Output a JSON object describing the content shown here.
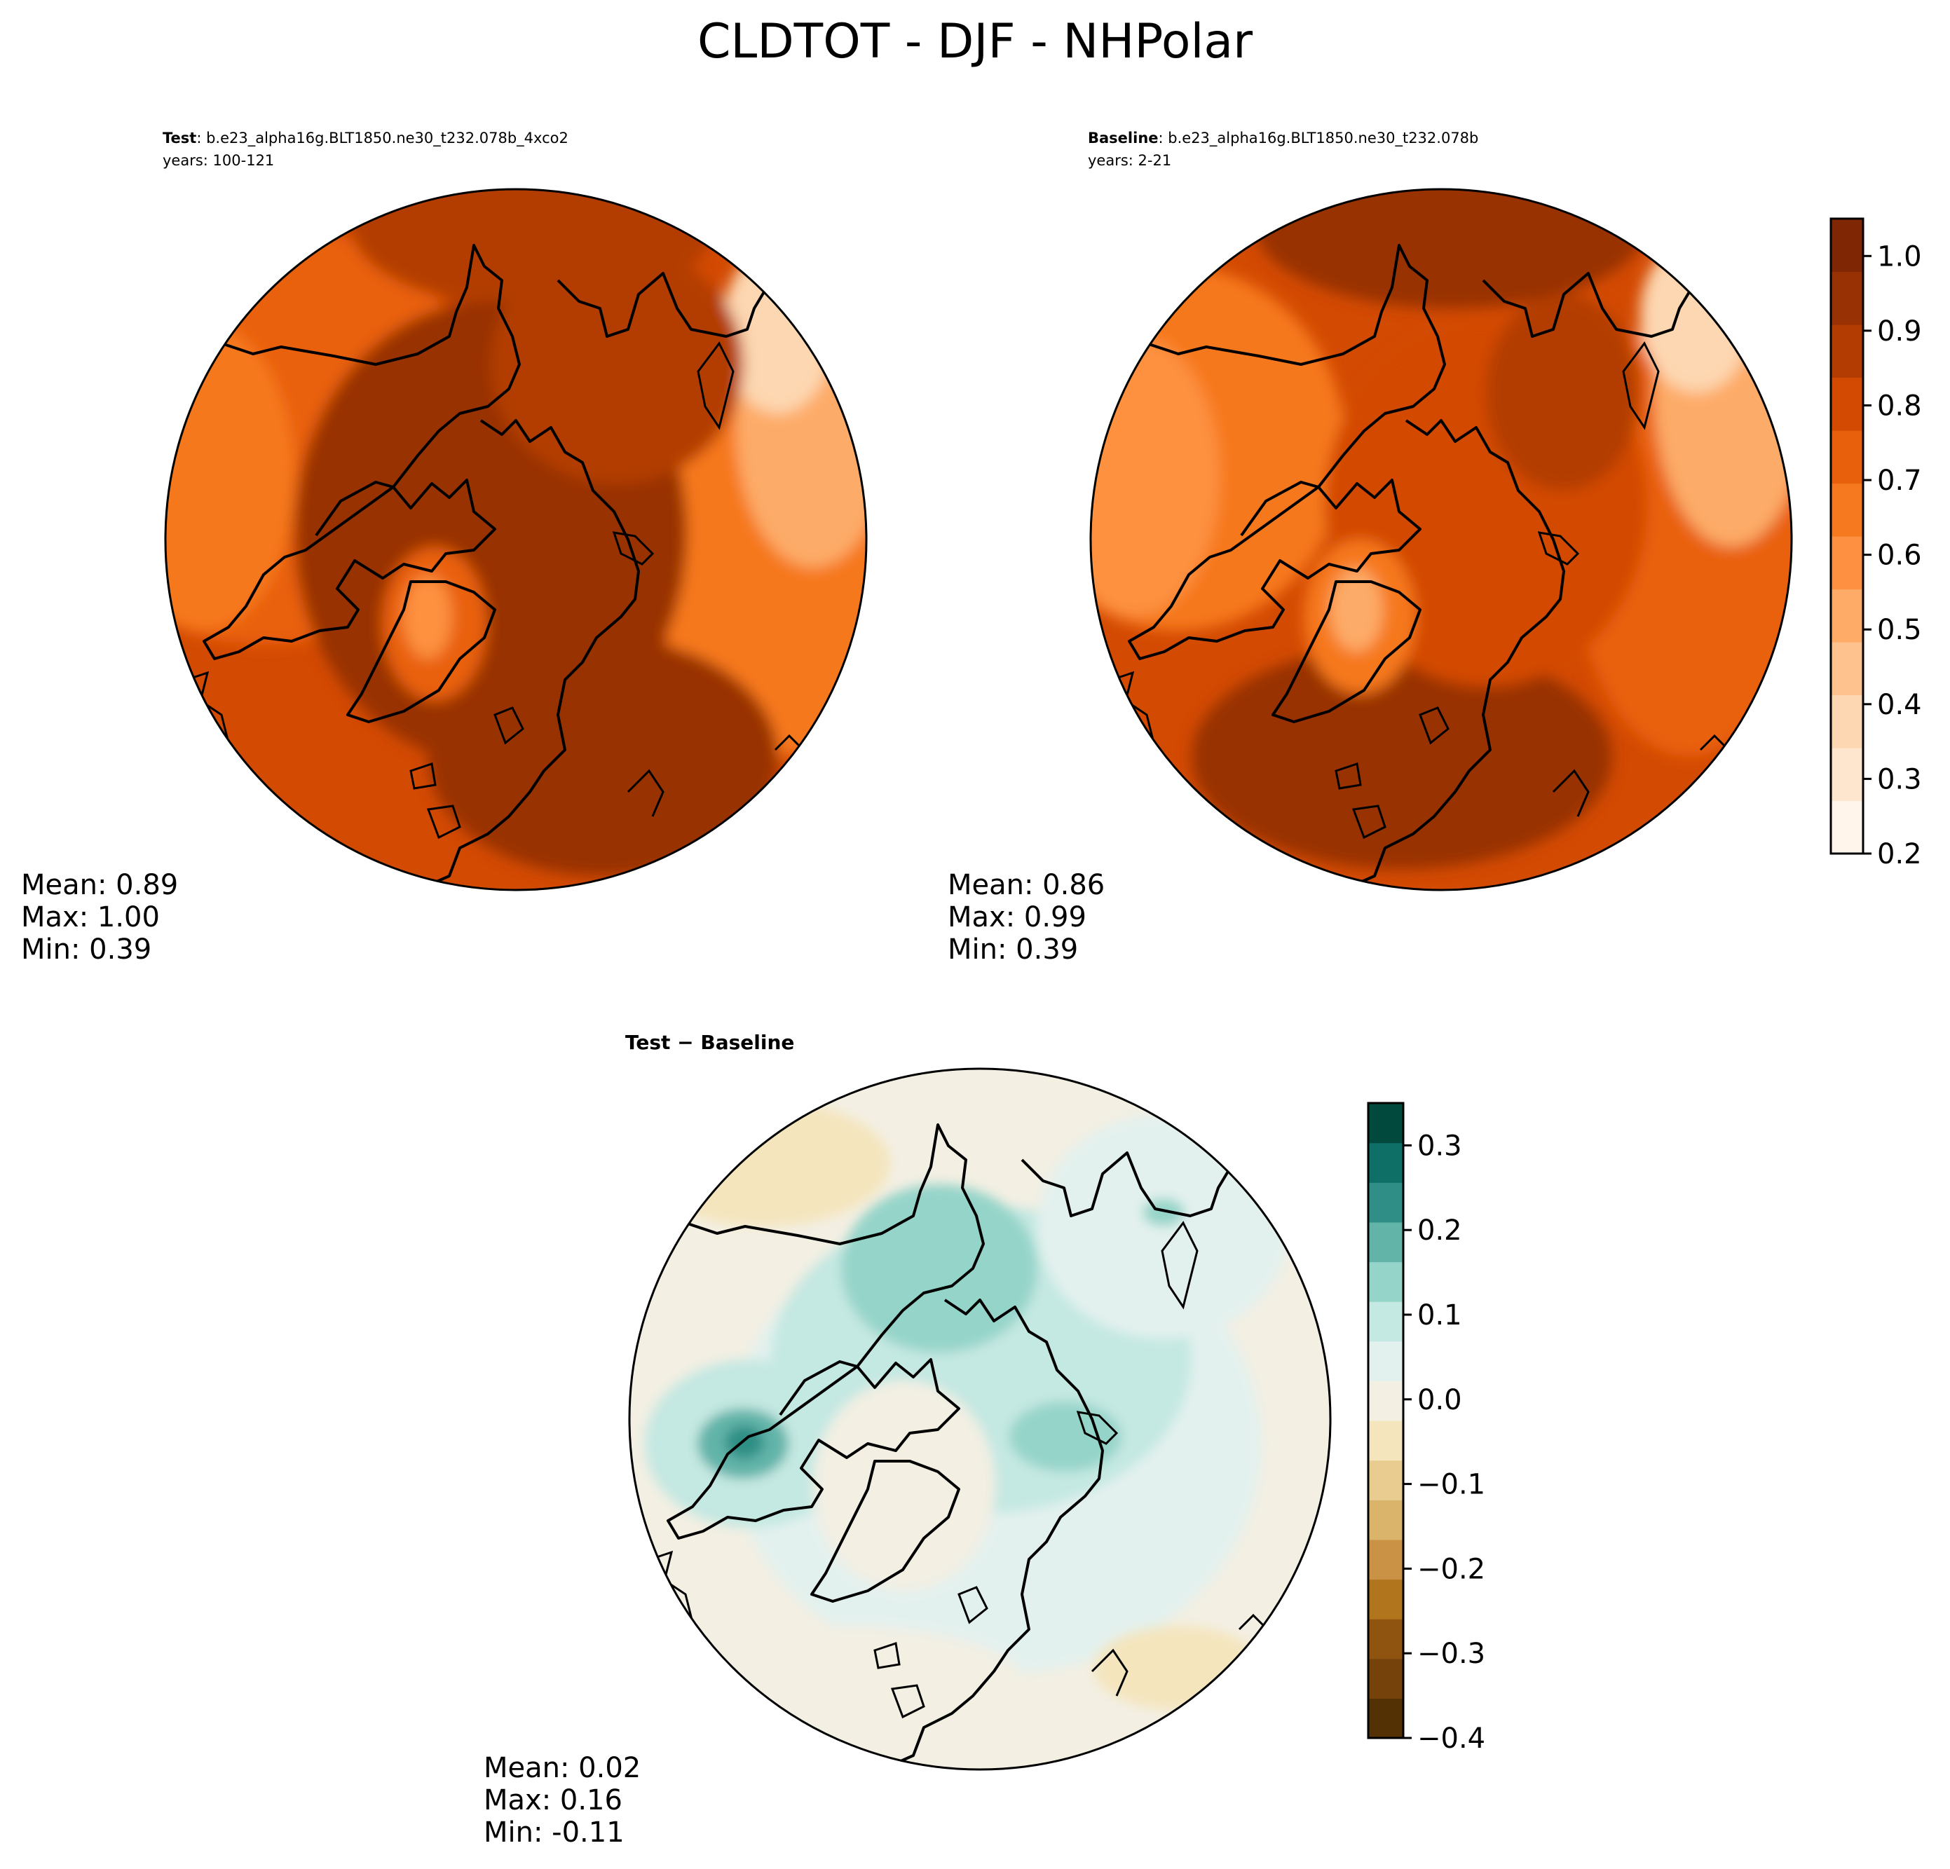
{
  "figure": {
    "title": "CLDTOT - DJF - NHPolar"
  },
  "palettes": {
    "oranges": [
      "#fff5eb",
      "#fee6ce",
      "#fdd7b1",
      "#fdc28e",
      "#fdab67",
      "#fd9141",
      "#f6781f",
      "#e9600c",
      "#d34a02",
      "#b33c02",
      "#983103",
      "#7f2704"
    ],
    "diverging": [
      "#543005",
      "#74420a",
      "#8f540f",
      "#b1751d",
      "#c99245",
      "#dab46a",
      "#e8cc90",
      "#f4e5bd",
      "#f3efe3",
      "#e3f1ee",
      "#c4e8e2",
      "#95d4c9",
      "#62b4a9",
      "#2f8f86",
      "#0d6f66",
      "#00493c"
    ]
  },
  "chart_data": [
    {
      "type": "heatmap",
      "panel": "test",
      "label_bold": "Test",
      "label_rest": ": b.e23_alpha16g.BLT1850.ne30_t232.078b_4xco2",
      "years": "years: 100-121",
      "mean": "Mean:  0.89",
      "max": "Max:  1.00",
      "min": "Min:  0.39"
    },
    {
      "type": "heatmap",
      "panel": "baseline",
      "label_bold": "Baseline",
      "label_rest": ": b.e23_alpha16g.BLT1850.ne30_t232.078b",
      "years": "years: 2-21",
      "mean": "Mean:  0.86",
      "max": "Max:  0.99",
      "min": "Min:  0.39"
    },
    {
      "type": "heatmap",
      "panel": "difference",
      "label": "Test − Baseline",
      "mean": "Mean:  0.02",
      "max": "Max:  0.16",
      "min": "Min: -0.11"
    }
  ],
  "colorbars": {
    "main": {
      "range": [
        0.2,
        1.05
      ],
      "tick_values": [
        0.2,
        0.3,
        0.4,
        0.5,
        0.6,
        0.7,
        0.8,
        0.9,
        1.0
      ],
      "ticks": [
        "0.2",
        "0.3",
        "0.4",
        "0.5",
        "0.6",
        "0.7",
        "0.8",
        "0.9",
        "1.0"
      ]
    },
    "diff": {
      "range": [
        -0.4,
        0.35
      ],
      "tick_values": [
        -0.4,
        -0.3,
        -0.2,
        -0.1,
        0.0,
        0.1,
        0.2,
        0.3
      ],
      "ticks": [
        "−0.4",
        "−0.3",
        "−0.2",
        "−0.1",
        "0.0",
        "0.1",
        "0.2",
        "0.3"
      ]
    }
  }
}
